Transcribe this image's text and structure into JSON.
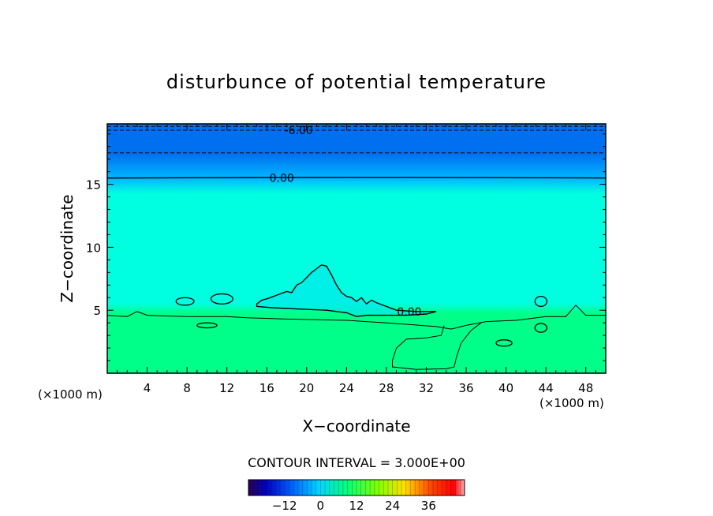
{
  "chart_data": {
    "type": "contour",
    "title": "disturbunce of potential temperature",
    "xlabel": "X−coordinate",
    "ylabel": "Z−coordinate",
    "x_unit_left": "(×1000 m)",
    "x_unit_right": "(×1000 m)",
    "xlim": [
      0,
      50
    ],
    "ylim": [
      0,
      19.8
    ],
    "x_ticks": [
      4,
      8,
      12,
      16,
      20,
      24,
      28,
      32,
      36,
      40,
      44,
      48
    ],
    "y_ticks": [
      5,
      10,
      15
    ],
    "contour_interval_text": "CONTOUR INTERVAL = 3.000E+00",
    "contour_labels": [
      {
        "text": "-6.00",
        "x": 19.2,
        "y": 19.3
      },
      {
        "text": "0.00",
        "x": 17.5,
        "y": 15.5
      },
      {
        "text": "0.00",
        "x": 30.3,
        "y": 4.9
      }
    ],
    "colorbar": {
      "range": [
        -24,
        48
      ],
      "tick_values": [
        -12,
        0,
        12,
        24,
        36
      ],
      "tick_labels": [
        "−12",
        "0",
        "12",
        "24",
        "36"
      ]
    },
    "colors": {
      "band_top": "#0070f0",
      "band_upper": "#00b8ff",
      "band_mid": "#00ffe0",
      "band_lower": "#00ff88"
    },
    "contours": {
      "top_dashed_z": [
        19.6,
        19.3,
        17.5
      ],
      "zero_line_z": 15.5,
      "lower_boundary": [
        [
          0,
          4.6
        ],
        [
          2,
          4.5
        ],
        [
          3,
          4.9
        ],
        [
          4,
          4.6
        ],
        [
          8,
          4.5
        ],
        [
          12,
          4.5
        ],
        [
          14,
          4.4
        ],
        [
          18,
          4.3
        ],
        [
          24,
          4.2
        ],
        [
          28,
          4.0
        ],
        [
          33,
          3.7
        ],
        [
          34.5,
          3.5
        ],
        [
          36,
          3.8
        ],
        [
          38,
          4.1
        ],
        [
          41,
          4.2
        ],
        [
          44,
          4.5
        ],
        [
          46,
          4.5
        ],
        [
          47,
          5.4
        ],
        [
          48,
          4.6
        ],
        [
          50,
          4.6
        ]
      ],
      "valley": [
        [
          33.8,
          3.8
        ],
        [
          33.5,
          3.0
        ],
        [
          32,
          2.8
        ],
        [
          30,
          2.7
        ],
        [
          29,
          2.0
        ],
        [
          28.6,
          1.0
        ],
        [
          28.6,
          0.5
        ],
        [
          31,
          0.3
        ],
        [
          34,
          0.35
        ],
        [
          34.8,
          0.5
        ],
        [
          35,
          1.2
        ],
        [
          35.5,
          2.4
        ],
        [
          36.5,
          3.4
        ],
        [
          37.5,
          4.0
        ]
      ],
      "mountain": [
        [
          15,
          5.5
        ],
        [
          15.5,
          5.8
        ],
        [
          16,
          5.9
        ],
        [
          17,
          6.2
        ],
        [
          18,
          6.5
        ],
        [
          18.5,
          6.4
        ],
        [
          19,
          7.0
        ],
        [
          19.5,
          7.2
        ],
        [
          20,
          7.6
        ],
        [
          20.5,
          8.0
        ],
        [
          21,
          8.3
        ],
        [
          21.5,
          8.6
        ],
        [
          22,
          8.5
        ],
        [
          22.5,
          7.8
        ],
        [
          23,
          7.0
        ],
        [
          23.5,
          6.4
        ],
        [
          24,
          6.1
        ],
        [
          24.5,
          6.0
        ],
        [
          25,
          5.7
        ],
        [
          25.5,
          6.0
        ],
        [
          26,
          5.5
        ],
        [
          26.5,
          5.8
        ],
        [
          27,
          5.6
        ],
        [
          28,
          5.3
        ],
        [
          29,
          5.0
        ],
        [
          31,
          4.9
        ],
        [
          33,
          4.9
        ],
        [
          32,
          4.7
        ],
        [
          30,
          4.6
        ],
        [
          26,
          4.6
        ],
        [
          25,
          4.5
        ],
        [
          24,
          4.8
        ],
        [
          22,
          5.0
        ],
        [
          19,
          5.1
        ],
        [
          16.5,
          5.2
        ],
        [
          15,
          5.3
        ]
      ],
      "small_loops": [
        {
          "x": 7.8,
          "y": 5.7,
          "rx": 0.9,
          "ry": 0.3
        },
        {
          "x": 11.5,
          "y": 5.9,
          "rx": 1.1,
          "ry": 0.4
        },
        {
          "x": 43.5,
          "y": 5.7,
          "rx": 0.6,
          "ry": 0.4
        },
        {
          "x": 43.5,
          "y": 3.6,
          "rx": 0.6,
          "ry": 0.35
        },
        {
          "x": 39.8,
          "y": 2.4,
          "rx": 0.8,
          "ry": 0.25
        },
        {
          "x": 10.0,
          "y": 3.8,
          "rx": 1.0,
          "ry": 0.2
        }
      ]
    }
  }
}
